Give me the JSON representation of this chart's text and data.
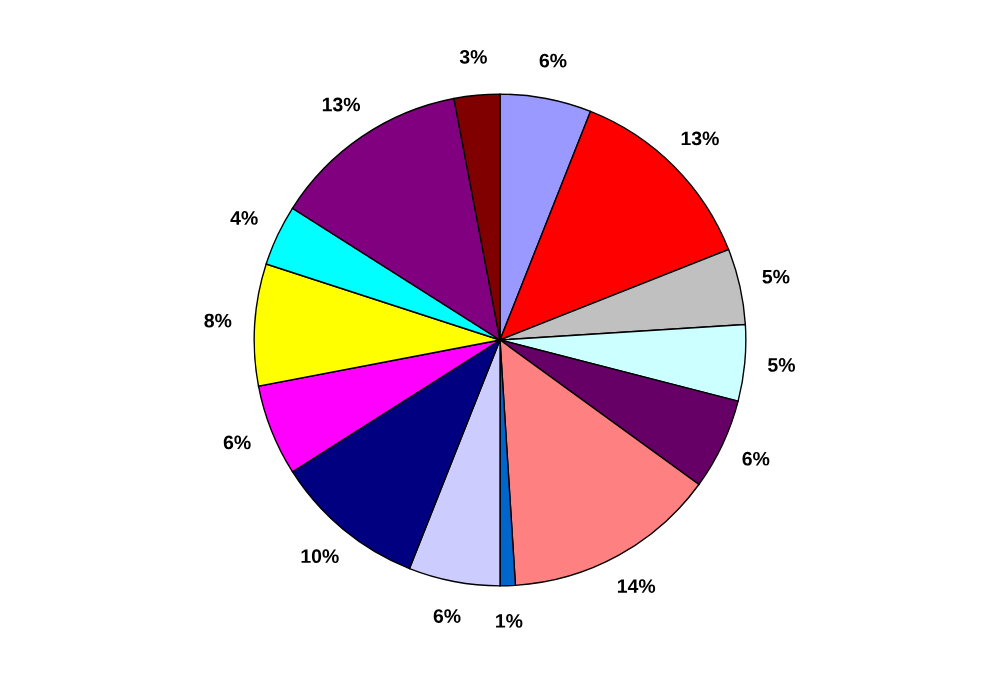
{
  "chart_data": {
    "type": "pie",
    "categories": [
      null,
      null,
      null,
      null,
      null,
      null,
      null,
      null,
      null,
      null,
      null,
      null,
      null,
      null
    ],
    "values": [
      6,
      13,
      5,
      5,
      6,
      14,
      1,
      6,
      10,
      6,
      8,
      4,
      13,
      3
    ],
    "value_labels": [
      "6%",
      "13%",
      "5%",
      "5%",
      "6%",
      "14%",
      "1%",
      "6%",
      "10%",
      "6%",
      "8%",
      "4%",
      "13%",
      "3%"
    ],
    "colors": [
      "#9999ff",
      "#ff0000",
      "#c0c0c0",
      "#ccffff",
      "#660066",
      "#ff8080",
      "#0066cc",
      "#ccccff",
      "#000080",
      "#ff00ff",
      "#ffff00",
      "#00ffff",
      "#800080",
      "#800000"
    ]
  }
}
